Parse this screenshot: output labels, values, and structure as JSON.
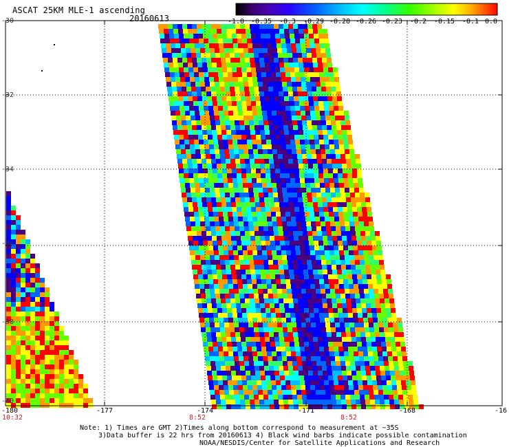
{
  "header": {
    "title": "ASCAT 25KM MLE-1 ascending",
    "date": "20160613"
  },
  "colorbar": {
    "tick_labels": [
      "-1.0",
      "-0.35",
      "-0.3",
      "-0.29",
      "-0.28",
      "-0.26",
      "-0.23",
      "-0.2",
      "-0.15",
      "-0.1",
      "0.0"
    ],
    "colors": [
      "#000000",
      "#4b0082",
      "#0000ff",
      "#0066ff",
      "#00bfff",
      "#00ffff",
      "#33ff66",
      "#66ff00",
      "#ffff00",
      "#ff9900",
      "#ff0000"
    ]
  },
  "axes": {
    "lat_labels": [
      "-30",
      "-32",
      "-34",
      "-36",
      "-38",
      "-40"
    ],
    "lon_labels": [
      "-180",
      "-177",
      "-174",
      "-171",
      "-168",
      "-16"
    ],
    "time_labels": [
      "10:32",
      "8:52",
      "8:52"
    ]
  },
  "notes": {
    "line1": "Note: 1) Times are GMT 2)Times along bottom correspond to measurement at ~35S",
    "line2": "3)Data buffer is 22 hrs from 20160613 4) Black wind barbs indicate possible contamination",
    "line3": "NOAA/NESDIS/Center for Satellite Applications and Research"
  }
}
